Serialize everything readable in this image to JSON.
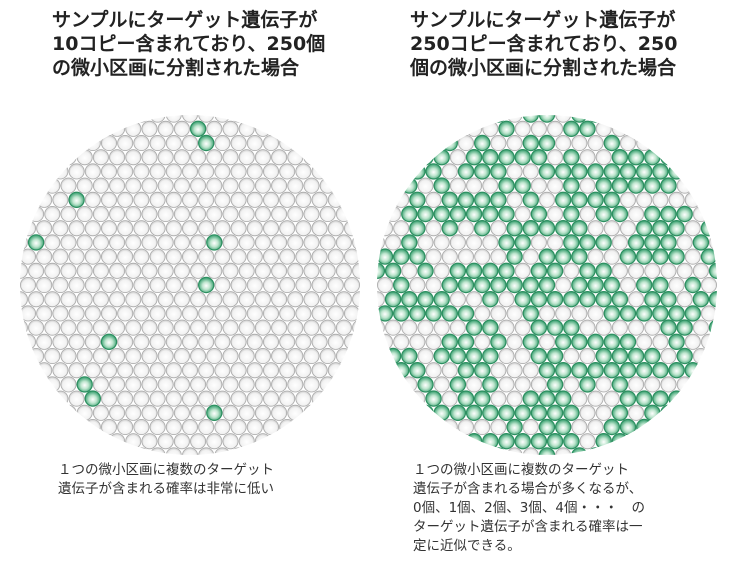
{
  "left_panel": {
    "title": "サンプルにターゲット遺伝子が\n10コピー含まれており、250個\nの微小区画に分割された場合",
    "caption": "１つの微小区画に複数のターゲット\n遺伝子が含まれる確率は非常に低い",
    "target_copies": 10,
    "partitions": 250
  },
  "right_panel": {
    "title": "サンプルにターゲット遺伝子が\n250コピー含まれており、250\n個の微小区画に分割された場合",
    "caption": "１つの微小区画に複数のターゲット\n遺伝子が含まれる場合が多くなるが、\n0個、1個、2個、3個、4個・・・　の\nターゲット遺伝子が含まれる確率は一\n定に近似できる。",
    "target_copies": 250,
    "partitions": 250
  },
  "colors": {
    "positive": "#3aa876",
    "negative": "#d9d9d9"
  }
}
